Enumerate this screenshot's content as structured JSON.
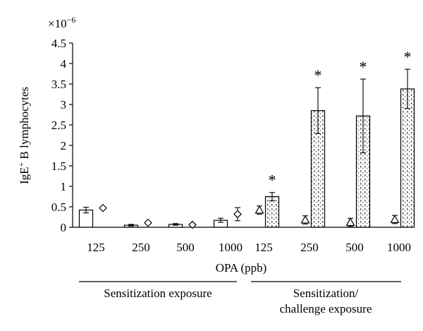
{
  "chart_data": {
    "type": "bar",
    "ylabel": "IgE",
    "ylabel_sup": "+",
    "ylabel_rest": " B lymphocytes",
    "ylabel_full": "IgE+ B lymphocytes",
    "xlabel": "OPA (ppb)",
    "multiplier": "×10",
    "multiplier_exp": "−6",
    "ylim": [
      0,
      4.5
    ],
    "y_ticks": [
      "0",
      "0.5",
      "1",
      "1.5",
      "2",
      "2.5",
      "3",
      "3.5",
      "4",
      "4.5"
    ],
    "groups": [
      {
        "label": "Sensitization exposure",
        "categories": [
          "125",
          "250",
          "500",
          "1000"
        ],
        "series": [
          {
            "pattern": "open bar",
            "values": [
              0.42,
              0.05,
              0.07,
              0.17
            ],
            "errors": [
              0.07,
              0.02,
              0.02,
              0.05
            ],
            "significant": [
              false,
              false,
              false,
              false
            ]
          },
          {
            "marker": "diamond",
            "values": [
              0.47,
              0.11,
              0.06,
              0.32
            ],
            "errors": [
              0.02,
              0.02,
              0.02,
              0.16
            ]
          }
        ]
      },
      {
        "label": "Sensitization/\nchallenge exposure",
        "label_lines": [
          "Sensitization/",
          "challenge exposure"
        ],
        "categories": [
          "125",
          "250",
          "500",
          "1000"
        ],
        "series": [
          {
            "marker": "triangle",
            "values": [
              0.42,
              0.18,
              0.12,
              0.19
            ],
            "errors": [
              0.1,
              0.1,
              0.1,
              0.1
            ]
          },
          {
            "pattern": "dotted bar",
            "values": [
              0.75,
              2.85,
              2.72,
              3.38
            ],
            "errors": [
              0.1,
              0.56,
              0.9,
              0.48
            ],
            "significant": [
              true,
              true,
              true,
              true
            ]
          }
        ]
      }
    ],
    "significance_marker": "*"
  }
}
